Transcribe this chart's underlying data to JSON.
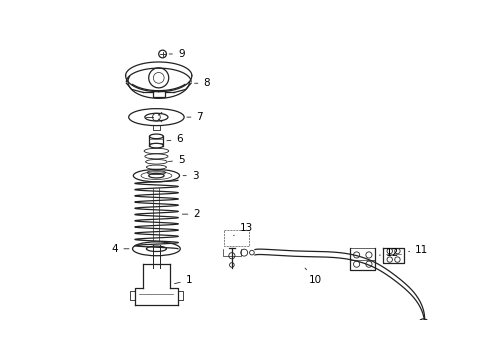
{
  "bg_color": "#ffffff",
  "line_color": "#222222",
  "label_color": "#000000",
  "lw": 0.9,
  "parts_labels": [
    "1",
    "2",
    "3",
    "4",
    "5",
    "6",
    "7",
    "8",
    "9",
    "10",
    "11",
    "12",
    "13"
  ]
}
